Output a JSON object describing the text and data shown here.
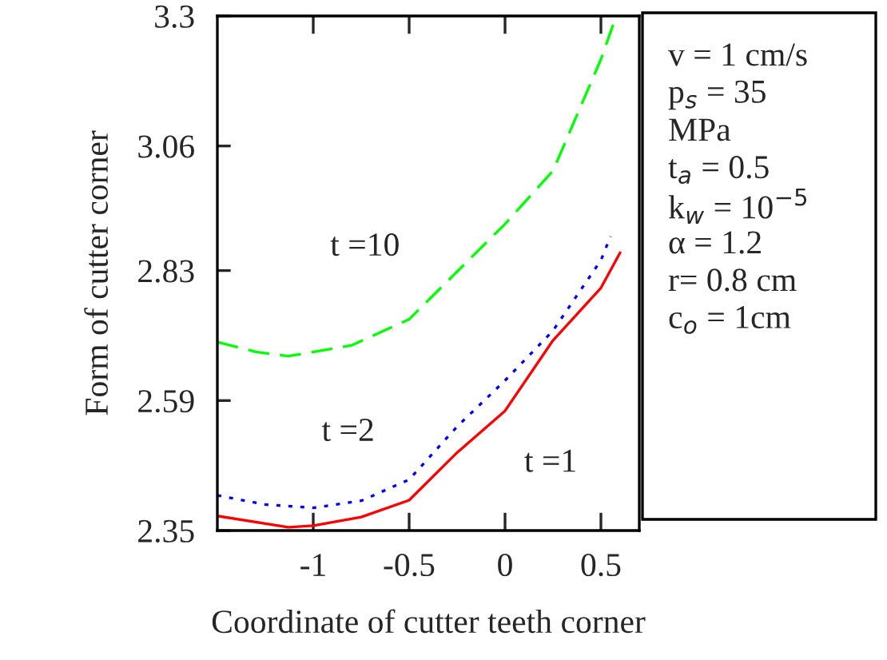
{
  "chart_data": {
    "type": "line",
    "xlabel": "Coordinate of cutter teeth corner",
    "ylabel": "Form of cutter corner",
    "xlim": [
      -1.5,
      0.7
    ],
    "xticks": [
      -1,
      -0.5,
      0,
      0.5
    ],
    "ylim": [
      2.35,
      3.3
    ],
    "yticks": [
      2.35,
      2.59,
      2.83,
      3.06,
      3.3
    ],
    "grid": false,
    "series": [
      {
        "color": "#00ff00",
        "line_style": "dashed",
        "x": [
          -1.5,
          -1.3,
          -1.13,
          -0.8,
          -0.5,
          -0.25,
          0,
          0.25,
          0.5,
          0.58
        ],
        "values": [
          2.698,
          2.68,
          2.672,
          2.692,
          2.74,
          2.828,
          2.916,
          3.014,
          3.22,
          3.3
        ]
      },
      {
        "color": "#0000ff",
        "line_style": "dotted",
        "x": [
          -1.5,
          -1.25,
          -1.0,
          -0.75,
          -0.5,
          -0.25,
          0,
          0.25,
          0.5,
          0.55
        ],
        "values": [
          2.415,
          2.398,
          2.392,
          2.405,
          2.444,
          2.542,
          2.627,
          2.719,
          2.849,
          2.893
        ]
      },
      {
        "color": "#ff0000",
        "line_style": "solid",
        "x": [
          -1.5,
          -1.13,
          -1.0,
          -0.75,
          -0.5,
          -0.25,
          0,
          0.25,
          0.5,
          0.6
        ],
        "values": [
          2.377,
          2.356,
          2.359,
          2.375,
          2.406,
          2.494,
          2.571,
          2.701,
          2.798,
          2.863
        ]
      }
    ],
    "annotations": [
      "t =10",
      "t =2",
      "t =1",
      "v = 1 cm/s",
      "p$_{s}$ = 35",
      "MPa",
      "t$_{a}$ = 0.5",
      "k$_{w}$ = 10$^{−5}$",
      "α = 1.2",
      "r= 0.8 cm",
      "c$_{o}$ = 1cm"
    ]
  }
}
